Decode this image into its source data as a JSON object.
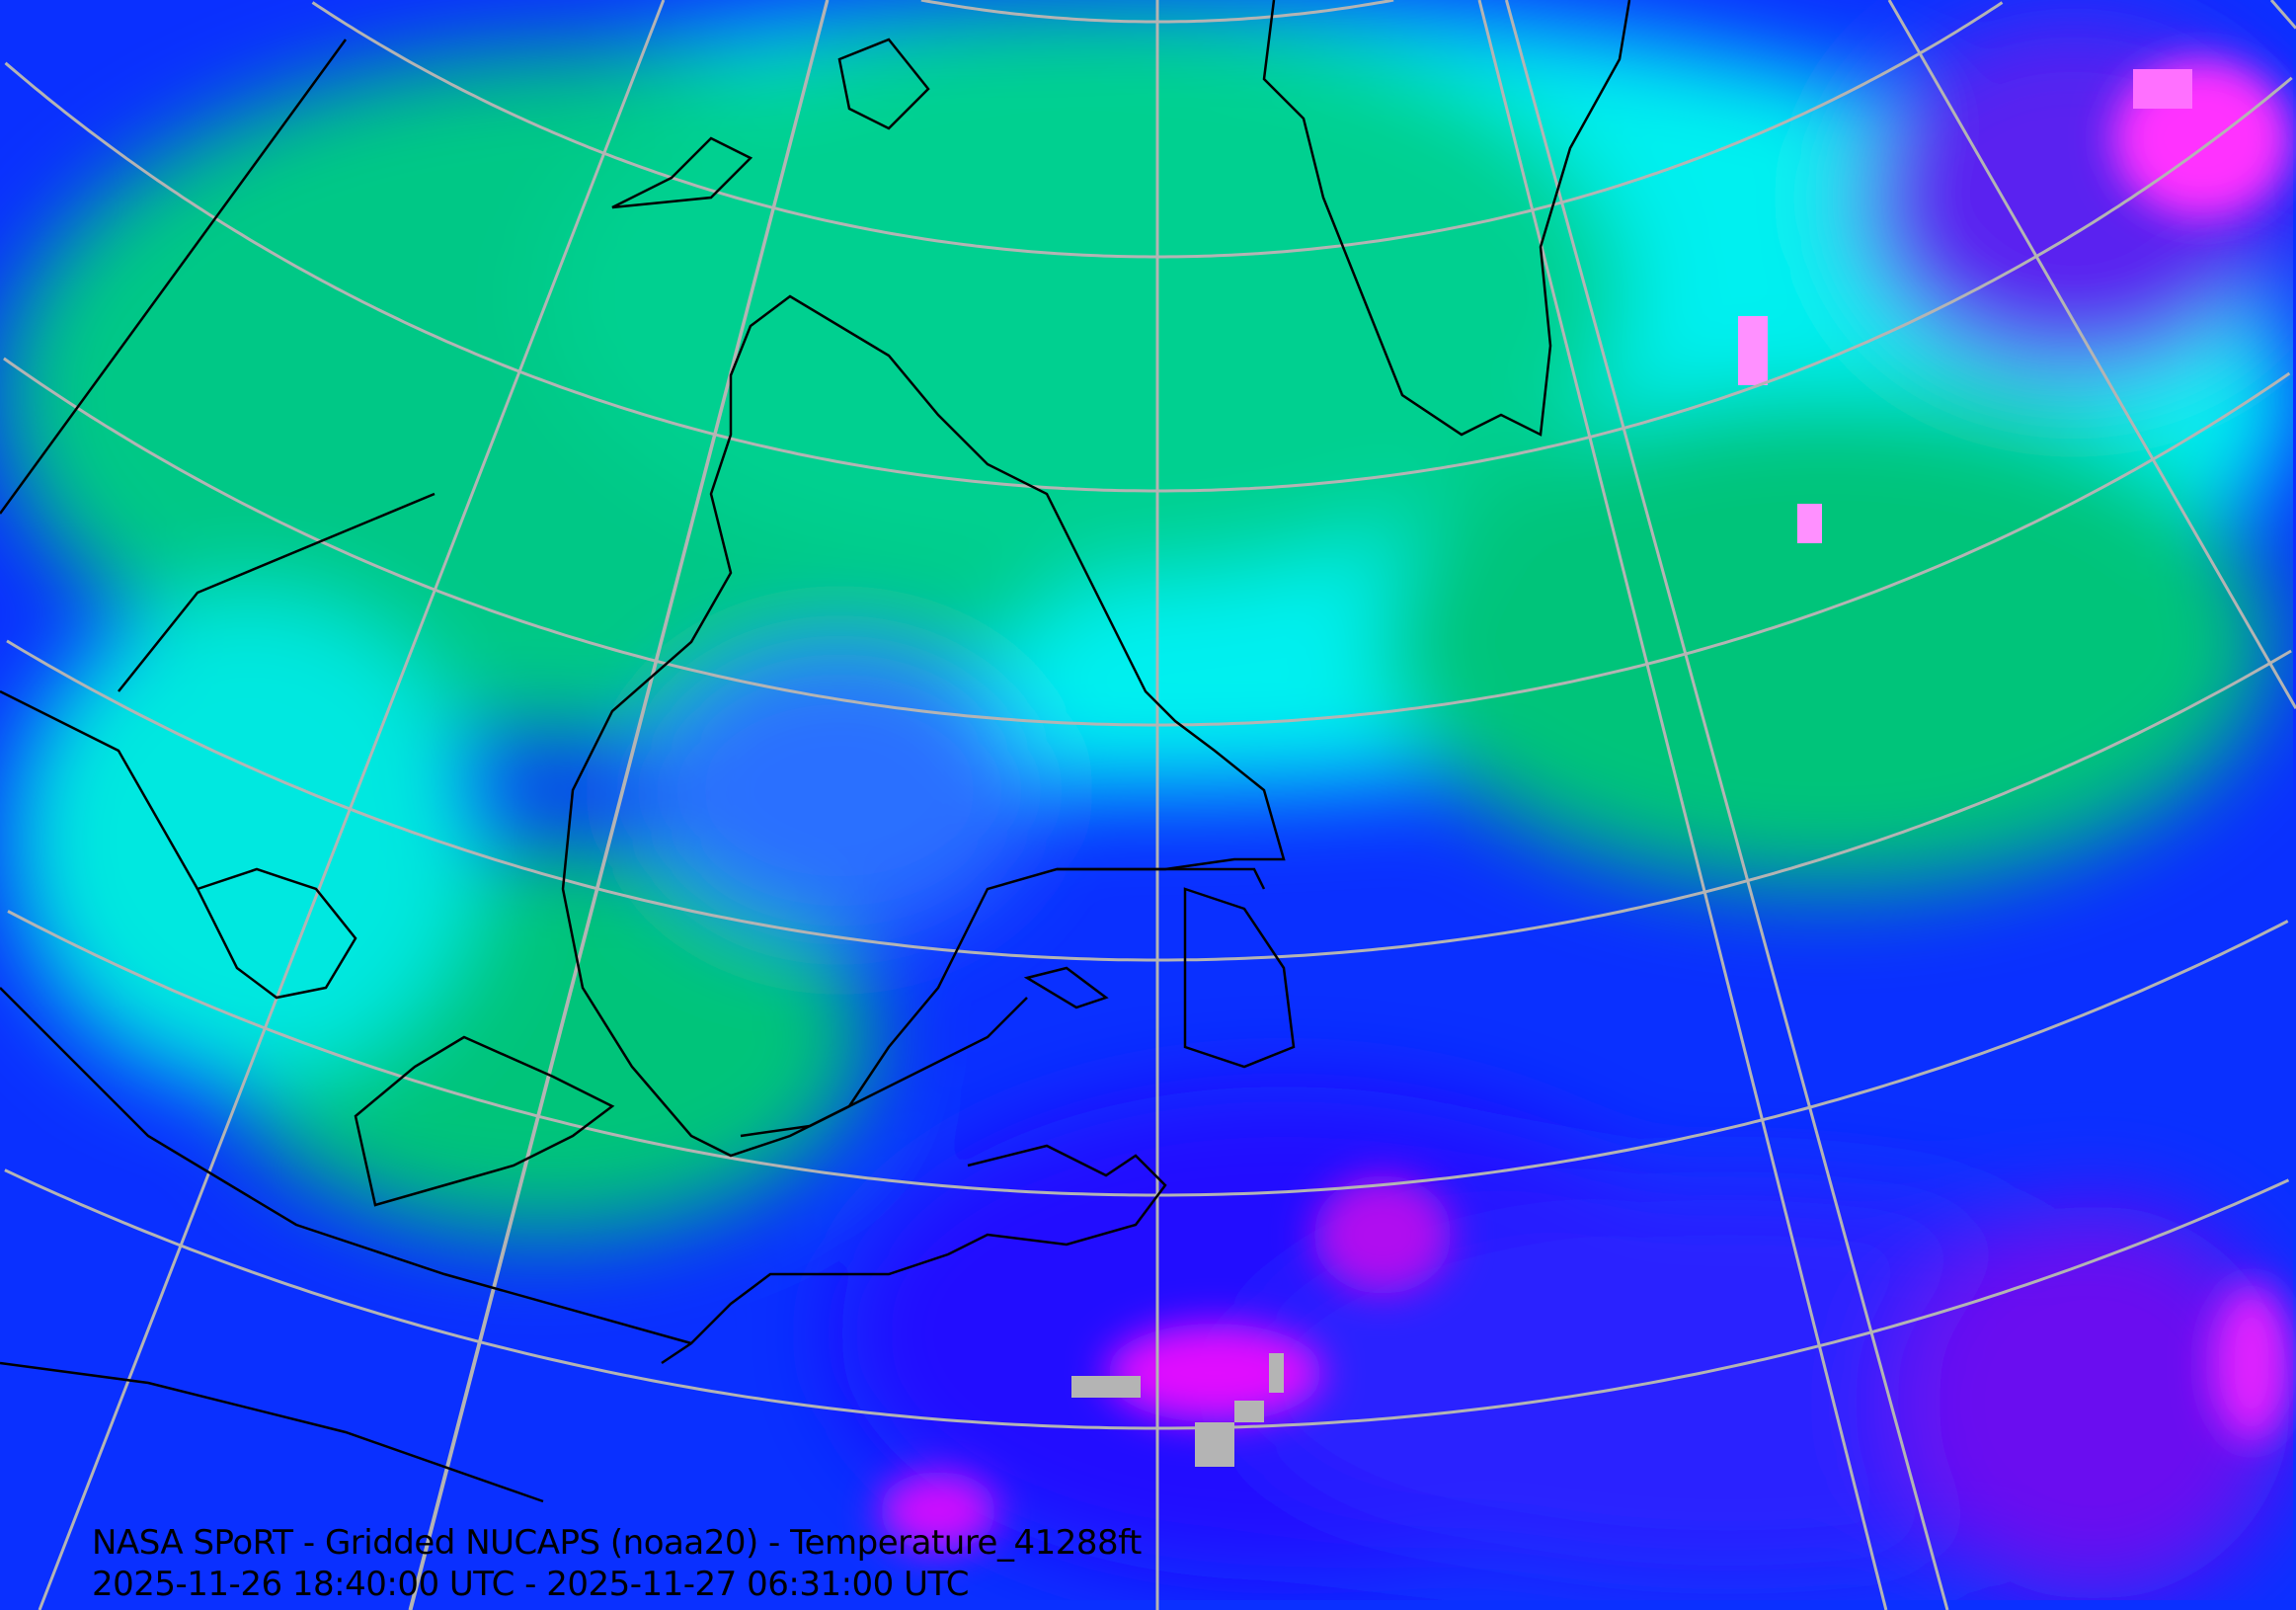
{
  "map": {
    "title": "NASA SPoRT - Gridded NUCAPS (noaa20) - Temperature_41288ft",
    "time_range": "2025-11-26 18:40:00 UTC - 2025-11-27 06:31:00 UTC",
    "colors": {
      "cold_green": "#00c47a",
      "cyan": "#00f5f0",
      "blue": "#0a28ff",
      "violet": "#7a10f0",
      "magenta": "#ff10f0",
      "missing": "#b4b4b4",
      "graticule": "#b4b4b4",
      "coastline": "#000000"
    }
  }
}
